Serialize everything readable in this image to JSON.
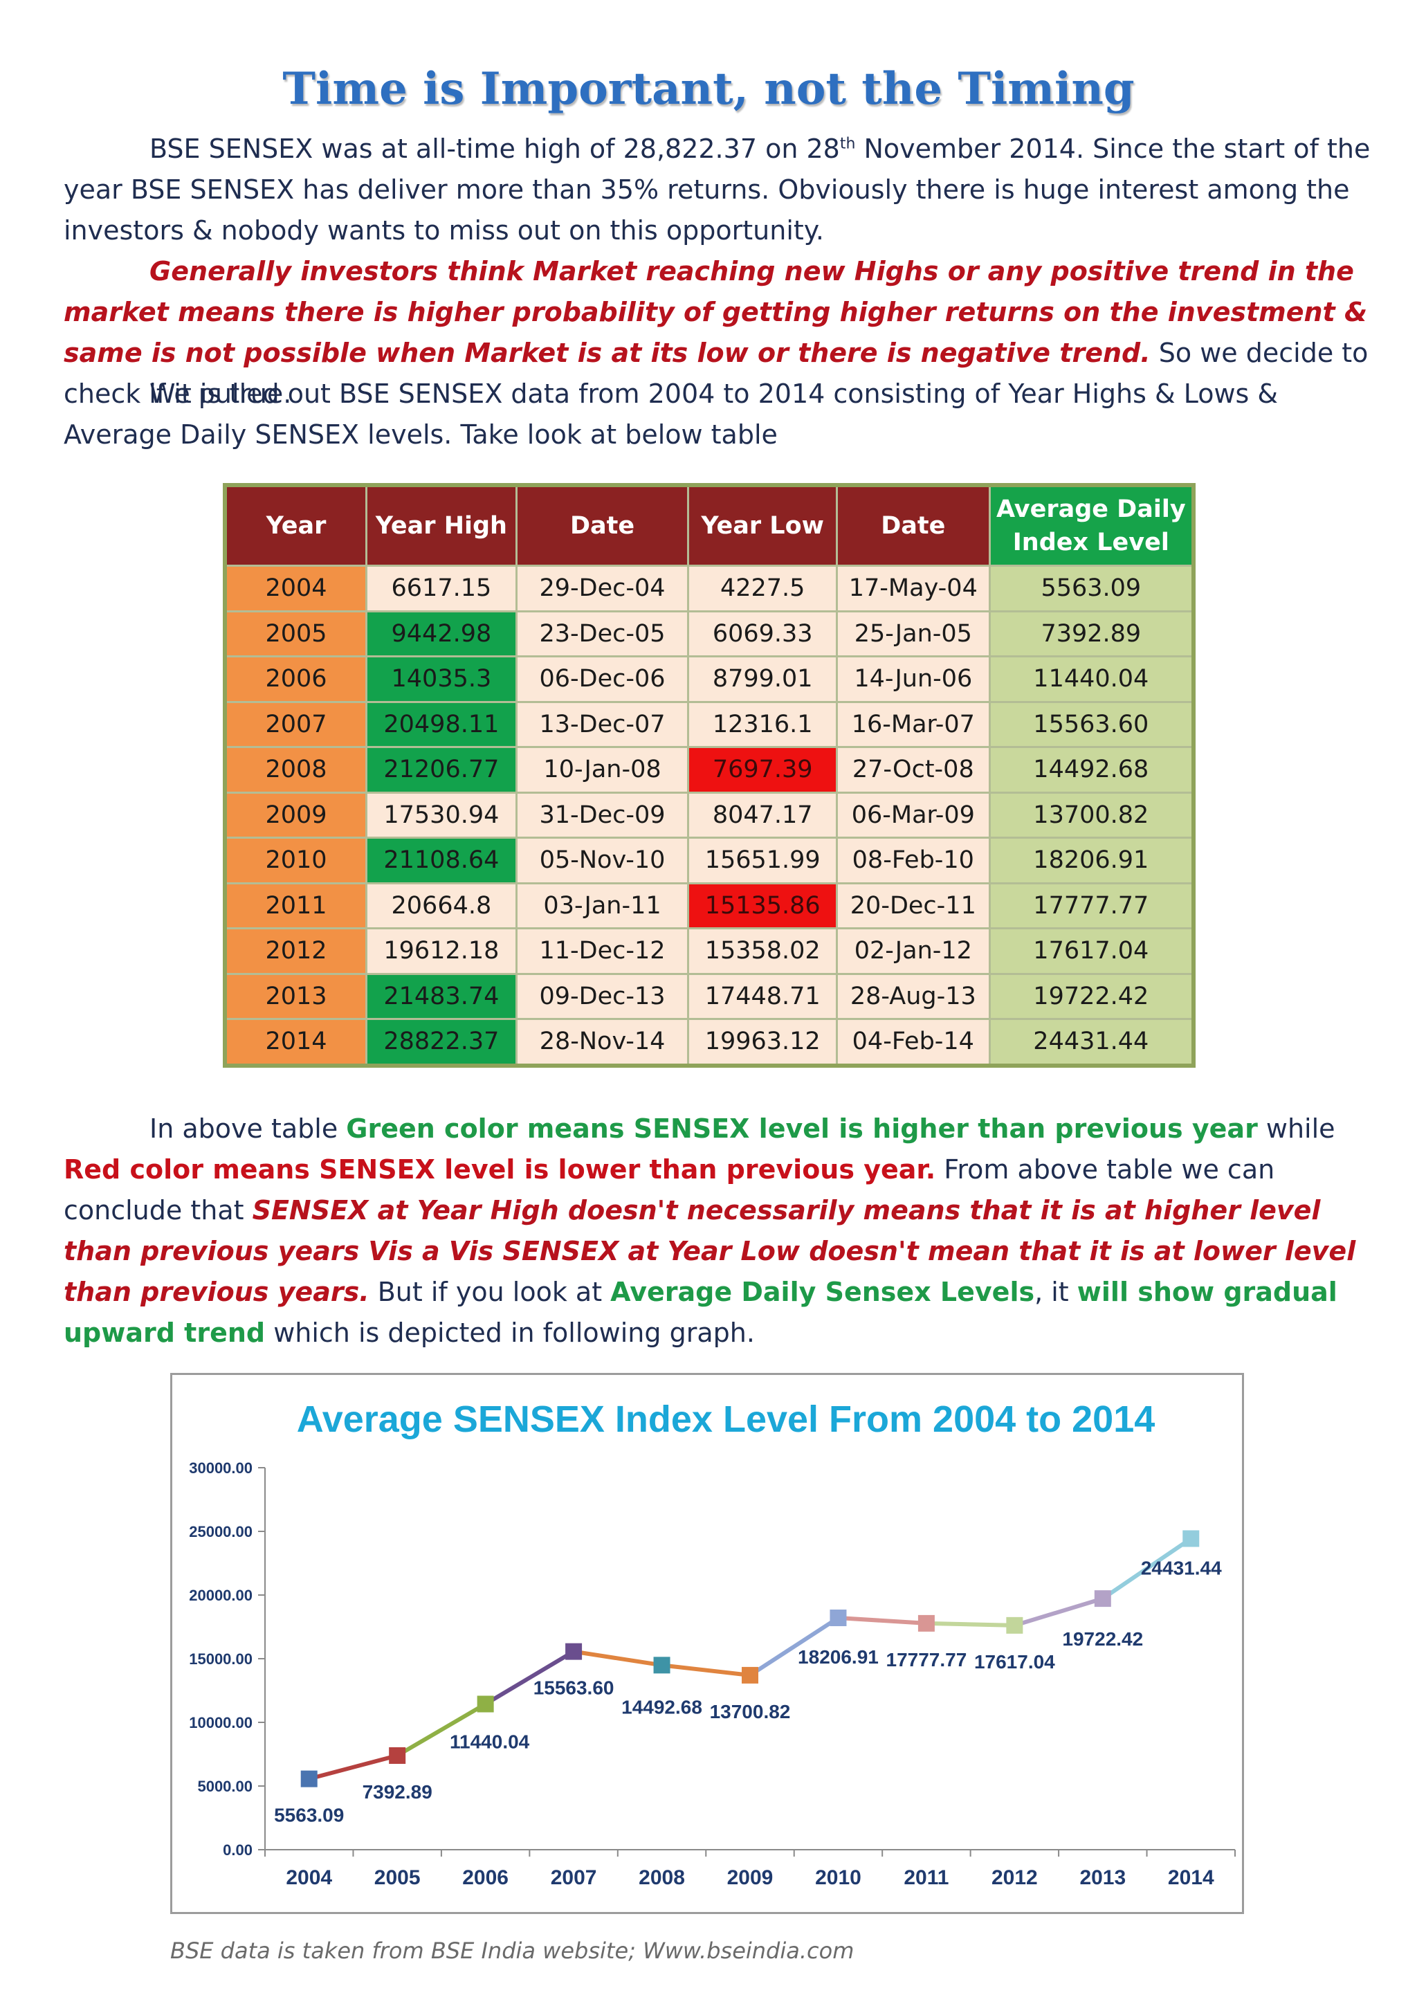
{
  "title": "Time is Important, not the Timing",
  "intro": {
    "s1": "BSE SENSEX was at all-time high of 28,822.37 on 28",
    "s1_sup": "th",
    "s1_tail": " November 2014. Since the start of the year BSE SENSEX has deliver more than 35% returns. Obviously there is huge interest among the investors & nobody wants to miss out on this opportunity."
  },
  "belief": {
    "highlight": "Generally investors think Market reaching new Highs or any positive trend in the market means there is higher probability of getting higher returns on the investment & same is not possible when Market is at its low or there is negative trend.",
    "tail": " So we decide to check if it is true."
  },
  "method": "We pulled out BSE SENSEX data from 2004 to 2014 consisting of Year Highs & Lows & Average Daily SENSEX levels.  Take look at below table",
  "table": {
    "headers": [
      "Year",
      "Year High",
      "Date",
      "Year Low",
      "Date",
      "Average Daily Index Level"
    ],
    "rows": [
      {
        "year": "2004",
        "high": "6617.15",
        "high_date": "29-Dec-04",
        "low": "4227.5",
        "low_date": "17-May-04",
        "avg": "5563.09",
        "high_state": "plain",
        "low_state": "plain"
      },
      {
        "year": "2005",
        "high": "9442.98",
        "high_date": "23-Dec-05",
        "low": "6069.33",
        "low_date": "25-Jan-05",
        "avg": "7392.89",
        "high_state": "up",
        "low_state": "plain"
      },
      {
        "year": "2006",
        "high": "14035.3",
        "high_date": "06-Dec-06",
        "low": "8799.01",
        "low_date": "14-Jun-06",
        "avg": "11440.04",
        "high_state": "up",
        "low_state": "plain"
      },
      {
        "year": "2007",
        "high": "20498.11",
        "high_date": "13-Dec-07",
        "low": "12316.1",
        "low_date": "16-Mar-07",
        "avg": "15563.60",
        "high_state": "up",
        "low_state": "plain"
      },
      {
        "year": "2008",
        "high": "21206.77",
        "high_date": "10-Jan-08",
        "low": "7697.39",
        "low_date": "27-Oct-08",
        "avg": "14492.68",
        "high_state": "up",
        "low_state": "down"
      },
      {
        "year": "2009",
        "high": "17530.94",
        "high_date": "31-Dec-09",
        "low": "8047.17",
        "low_date": "06-Mar-09",
        "avg": "13700.82",
        "high_state": "plain",
        "low_state": "plain"
      },
      {
        "year": "2010",
        "high": "21108.64",
        "high_date": "05-Nov-10",
        "low": "15651.99",
        "low_date": "08-Feb-10",
        "avg": "18206.91",
        "high_state": "up",
        "low_state": "plain"
      },
      {
        "year": "2011",
        "high": "20664.8",
        "high_date": "03-Jan-11",
        "low": "15135.86",
        "low_date": "20-Dec-11",
        "avg": "17777.77",
        "high_state": "plain",
        "low_state": "down"
      },
      {
        "year": "2012",
        "high": "19612.18",
        "high_date": "11-Dec-12",
        "low": "15358.02",
        "low_date": "02-Jan-12",
        "avg": "17617.04",
        "high_state": "plain",
        "low_state": "plain"
      },
      {
        "year": "2013",
        "high": "21483.74",
        "high_date": "09-Dec-13",
        "low": "17448.71",
        "low_date": "28-Aug-13",
        "avg": "19722.42",
        "high_state": "up",
        "low_state": "plain"
      },
      {
        "year": "2014",
        "high": "28822.37",
        "high_date": "28-Nov-14",
        "low": "19963.12",
        "low_date": "04-Feb-14",
        "avg": "24431.44",
        "high_state": "up",
        "low_state": "plain"
      }
    ]
  },
  "conclusion": {
    "p1": "In above table ",
    "green1": "Green color means SENSEX level is higher than previous year",
    "p2": " while ",
    "red1": "Red color means SENSEX level is lower than previous year.",
    "p3": " From above table we can conclude that ",
    "red2": "SENSEX at Year High doesn't necessarily means that it is at higher level than previous years Vis a Vis SENSEX at Year Low doesn't mean that it is at lower level than previous years.",
    "p4": " But if you look at ",
    "green2": "Average Daily Sensex Levels",
    "p5": ", it ",
    "green3": "will show gradual upward trend",
    "p6": " which is depicted in following graph."
  },
  "colors": {
    "title": "#2e6fc0",
    "chart_title": "#1ba7d8",
    "axis_label": "#1f3a6e",
    "segments": [
      "#b5413f",
      "#8fb045",
      "#6a4e8e",
      "#e0843f",
      "#e0843f",
      "#8fa6d6",
      "#d99694",
      "#c2d69b",
      "#b3a2c7",
      "#93cddd"
    ],
    "markers": [
      "#4a74b0",
      "#b5413f",
      "#8fb045",
      "#6a4e8e",
      "#3e93a6",
      "#e0843f",
      "#8fa6d6",
      "#d99694",
      "#c2d69b",
      "#b3a2c7",
      "#93cddd"
    ]
  },
  "chart_data": {
    "type": "line",
    "title": "Average SENSEX Index Level From 2004 to 2014",
    "xlabel": "",
    "ylabel": "",
    "x": [
      "2004",
      "2005",
      "2006",
      "2007",
      "2008",
      "2009",
      "2010",
      "2011",
      "2012",
      "2013",
      "2014"
    ],
    "values": [
      5563.09,
      7392.89,
      11440.04,
      15563.6,
      14492.68,
      13700.82,
      18206.91,
      17777.77,
      17617.04,
      19722.42,
      24431.44
    ],
    "data_labels": [
      "5563.09",
      "7392.89",
      "11440.04",
      "15563.60",
      "14492.68",
      "13700.82",
      "18206.91",
      "17777.77",
      "17617.04",
      "19722.42",
      "24431.44"
    ],
    "y_ticks": [
      "0.00",
      "5000.00",
      "10000.00",
      "15000.00",
      "20000.00",
      "25000.00",
      "30000.00"
    ],
    "ylim": [
      0,
      30000
    ],
    "grid": false,
    "legend": "none"
  },
  "footer": "BSE data is taken from BSE India website; Www.bseindia.com"
}
